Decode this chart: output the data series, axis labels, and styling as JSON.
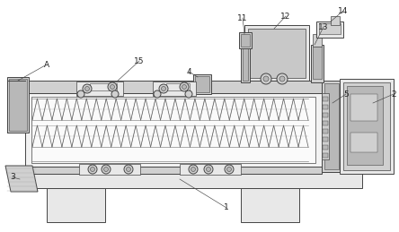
{
  "bg_color": "#ffffff",
  "lc": "#444444",
  "lw": 0.7,
  "figsize": [
    4.44,
    2.59
  ],
  "dpi": 100,
  "gray1": "#e8e8e8",
  "gray2": "#d0d0d0",
  "gray3": "#b8b8b8",
  "gray4": "#f2f2f2"
}
